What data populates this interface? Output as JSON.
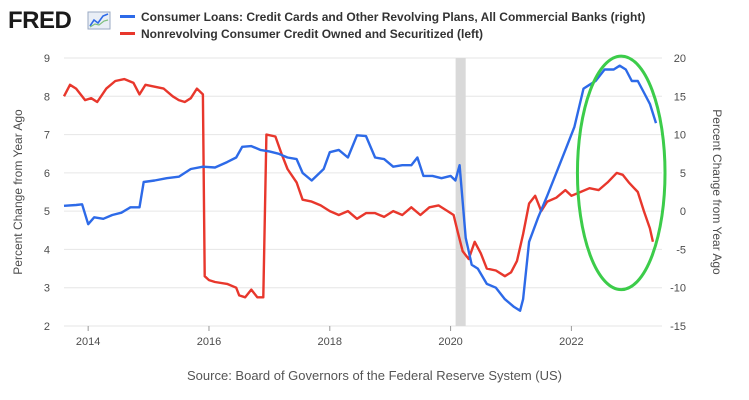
{
  "logo": {
    "text": "FRED"
  },
  "colors": {
    "left_series": "#e8372c",
    "right_series": "#2d6ae8",
    "recession": "#d9d9d9",
    "highlight": "#3ccc4a",
    "grid": "#e6e6e6"
  },
  "chart_data": {
    "type": "line",
    "legend": [
      "Consumer Loans: Credit Cards and Other Revolving Plans, All Commercial Banks (right)",
      "Nonrevolving Consumer Credit Owned and Securitized (left)"
    ],
    "ylabel_left": "Percent Change from Year Ago",
    "ylabel_right": "Percent Change from Year Ago",
    "ylim_left": [
      2,
      9
    ],
    "ylim_right": [
      -15,
      20
    ],
    "xlim": [
      2013.6,
      2023.5
    ],
    "x_ticks": [
      "2014",
      "2016",
      "2018",
      "2020",
      "2022"
    ],
    "y_ticks_left": [
      "2",
      "3",
      "4",
      "5",
      "6",
      "7",
      "8",
      "9"
    ],
    "y_ticks_right": [
      "-15",
      "-10",
      "-5",
      "0",
      "5",
      "10",
      "15",
      "20"
    ],
    "recession_band": {
      "start": "2020-02",
      "end": "2020-04"
    },
    "annotation": "green ellipse highlighting 2022–2023",
    "grid": "horizontal",
    "series": [
      {
        "name": "Nonrevolving Consumer Credit Owned and Securitized (left)",
        "axis": "left",
        "x": [
          2013.6,
          2013.7,
          2013.8,
          2013.95,
          2014.05,
          2014.15,
          2014.3,
          2014.45,
          2014.6,
          2014.75,
          2014.85,
          2014.95,
          2015.1,
          2015.25,
          2015.4,
          2015.5,
          2015.6,
          2015.7,
          2015.8,
          2015.9,
          2015.93,
          2016.0,
          2016.1,
          2016.3,
          2016.45,
          2016.5,
          2016.6,
          2016.7,
          2016.8,
          2016.9,
          2016.95,
          2017.1,
          2017.2,
          2017.3,
          2017.45,
          2017.55,
          2017.7,
          2017.85,
          2018.0,
          2018.15,
          2018.3,
          2018.45,
          2018.6,
          2018.75,
          2018.9,
          2019.05,
          2019.2,
          2019.35,
          2019.5,
          2019.65,
          2019.8,
          2019.95,
          2020.05,
          2020.12,
          2020.2,
          2020.3,
          2020.4,
          2020.5,
          2020.6,
          2020.75,
          2020.9,
          2021.0,
          2021.1,
          2021.2,
          2021.3,
          2021.4,
          2021.5,
          2021.6,
          2021.75,
          2021.9,
          2022.0,
          2022.15,
          2022.3,
          2022.45,
          2022.6,
          2022.75,
          2022.85,
          2022.95,
          2023.1,
          2023.2,
          2023.3,
          2023.35
        ],
        "values": [
          8.0,
          8.3,
          8.2,
          7.9,
          7.95,
          7.85,
          8.2,
          8.4,
          8.45,
          8.35,
          8.05,
          8.3,
          8.25,
          8.2,
          8.0,
          7.9,
          7.85,
          7.95,
          8.2,
          8.05,
          3.3,
          3.2,
          3.15,
          3.1,
          3.0,
          2.8,
          2.75,
          2.95,
          2.75,
          2.75,
          7.0,
          6.95,
          6.5,
          6.1,
          5.75,
          5.3,
          5.25,
          5.15,
          5.0,
          4.9,
          5.0,
          4.8,
          4.95,
          4.95,
          4.85,
          5.0,
          4.9,
          5.1,
          4.9,
          5.1,
          5.15,
          5.0,
          4.9,
          4.45,
          3.95,
          3.75,
          4.2,
          3.9,
          3.5,
          3.45,
          3.3,
          3.4,
          3.7,
          4.4,
          5.2,
          5.4,
          5.0,
          5.25,
          5.35,
          5.55,
          5.4,
          5.5,
          5.6,
          5.55,
          5.75,
          6.0,
          5.95,
          5.75,
          5.5,
          5.0,
          4.55,
          4.2
        ]
      },
      {
        "name": "Consumer Loans: Credit Cards and Other Revolving Plans, All Commercial Banks (right)",
        "axis": "right",
        "x": [
          2013.6,
          2013.8,
          2013.9,
          2014.0,
          2014.1,
          2014.25,
          2014.4,
          2014.55,
          2014.7,
          2014.85,
          2014.92,
          2015.1,
          2015.3,
          2015.5,
          2015.7,
          2015.9,
          2016.1,
          2016.3,
          2016.45,
          2016.55,
          2016.7,
          2016.85,
          2017.0,
          2017.15,
          2017.3,
          2017.45,
          2017.55,
          2017.7,
          2017.9,
          2018.0,
          2018.15,
          2018.3,
          2018.45,
          2018.6,
          2018.75,
          2018.9,
          2019.05,
          2019.2,
          2019.35,
          2019.45,
          2019.55,
          2019.7,
          2019.85,
          2020.0,
          2020.08,
          2020.15,
          2020.25,
          2020.35,
          2020.45,
          2020.6,
          2020.75,
          2020.9,
          2021.05,
          2021.15,
          2021.2,
          2021.3,
          2021.45,
          2021.6,
          2021.75,
          2021.9,
          2022.05,
          2022.2,
          2022.3,
          2022.4,
          2022.55,
          2022.7,
          2022.8,
          2022.9,
          2023.0,
          2023.1,
          2023.2,
          2023.3,
          2023.4
        ],
        "values": [
          0.7,
          0.8,
          0.9,
          -1.7,
          -0.8,
          -1.0,
          -0.5,
          -0.2,
          0.5,
          0.5,
          3.8,
          4.0,
          4.3,
          4.5,
          5.5,
          5.8,
          5.7,
          6.4,
          7.0,
          8.4,
          8.5,
          8.0,
          7.8,
          7.5,
          7.0,
          6.8,
          5.0,
          4.0,
          5.5,
          7.7,
          8.0,
          7.0,
          9.9,
          9.8,
          7.0,
          6.8,
          5.8,
          6.0,
          6.0,
          7.0,
          4.6,
          4.6,
          4.3,
          4.6,
          4.0,
          6.0,
          -3.5,
          -7.0,
          -7.5,
          -9.5,
          -10.0,
          -11.5,
          -12.5,
          -13.0,
          -11.5,
          -4.0,
          -0.8,
          2.0,
          5.0,
          8.0,
          11.0,
          16.0,
          16.5,
          17.0,
          18.5,
          18.5,
          19.0,
          18.5,
          17.0,
          17.0,
          15.5,
          14.0,
          11.5
        ]
      }
    ]
  },
  "source": "Source: Board of Governors of the Federal Reserve System (US)"
}
